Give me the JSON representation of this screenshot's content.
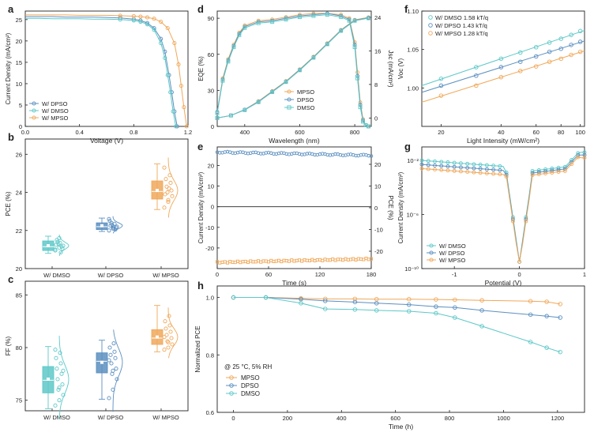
{
  "colors": {
    "DMSO": "#5ec8c8",
    "DPSO": "#5b8fc0",
    "MPSO": "#f0a85a",
    "axis": "#222222"
  },
  "chart_data": [
    {
      "panel": "a",
      "type": "line",
      "xlabel": "Voltage (V)",
      "ylabel": "Current Density (mA/cm²)",
      "xlim": [
        0,
        1.2
      ],
      "ylim": [
        0,
        27
      ],
      "xticks": [
        "0.0",
        "0.4",
        "0.8",
        "1.2"
      ],
      "yticks": [
        "0",
        "5",
        "10",
        "15",
        "20",
        "25"
      ],
      "legend": [
        "W/ DPSO",
        "W/ DMSO",
        "W/ MPSO"
      ],
      "series": [
        {
          "name": "DPSO",
          "x": [
            0,
            0.1,
            0.2,
            0.3,
            0.4,
            0.5,
            0.6,
            0.7,
            0.8,
            0.85,
            0.9,
            0.95,
            1.0,
            1.03,
            1.06,
            1.08,
            1.1,
            1.12
          ],
          "y": [
            25.7,
            25.7,
            25.7,
            25.6,
            25.6,
            25.6,
            25.5,
            25.4,
            25.1,
            24.8,
            24.2,
            23.0,
            20.5,
            17.5,
            12.0,
            8.0,
            3.5,
            0
          ]
        },
        {
          "name": "DMSO",
          "x": [
            0,
            0.1,
            0.2,
            0.3,
            0.4,
            0.5,
            0.6,
            0.7,
            0.8,
            0.85,
            0.9,
            0.95,
            1.0,
            1.03,
            1.05,
            1.07,
            1.09,
            1.11
          ],
          "y": [
            25.3,
            25.3,
            25.2,
            25.2,
            25.2,
            25.1,
            25.1,
            25.0,
            24.8,
            24.5,
            23.9,
            22.6,
            19.5,
            16.0,
            12.0,
            8.0,
            3.5,
            0
          ]
        },
        {
          "name": "MPSO",
          "x": [
            0,
            0.1,
            0.2,
            0.3,
            0.4,
            0.5,
            0.6,
            0.7,
            0.8,
            0.85,
            0.9,
            0.95,
            1.0,
            1.05,
            1.1,
            1.13,
            1.15,
            1.17,
            1.19
          ],
          "y": [
            26.1,
            26.1,
            26.1,
            26.1,
            26.0,
            26.0,
            26.0,
            25.9,
            25.8,
            25.7,
            25.5,
            25.2,
            24.5,
            23.0,
            19.5,
            14.5,
            9.5,
            4.5,
            0
          ]
        }
      ]
    },
    {
      "panel": "b",
      "type": "box",
      "ylabel": "PCE (%)",
      "ylim": [
        20,
        26.8
      ],
      "yticks": [
        "20",
        "22",
        "24",
        "26"
      ],
      "categories": [
        "W/ DMSO",
        "W/ DPSO",
        "W/ MPSO"
      ],
      "boxes": [
        {
          "min": 20.8,
          "q1": 20.95,
          "median": 21.15,
          "mean": 21.2,
          "q3": 21.45,
          "max": 21.7
        },
        {
          "min": 21.95,
          "q1": 22.05,
          "median": 22.2,
          "mean": 22.25,
          "q3": 22.4,
          "max": 22.65
        },
        {
          "min": 23.1,
          "q1": 23.65,
          "median": 24.05,
          "mean": 24.1,
          "q3": 24.6,
          "max": 25.5
        }
      ],
      "points": [
        [
          20.95,
          21.1,
          21.2,
          21.3,
          21.05,
          21.4,
          21.15,
          21.5,
          20.85,
          21.25,
          21.35,
          21.0,
          21.6
        ],
        [
          22.0,
          22.1,
          22.2,
          22.3,
          22.15,
          22.4,
          22.05,
          22.25,
          22.35,
          22.5,
          22.1,
          22.6,
          22.2
        ],
        [
          23.2,
          23.5,
          23.8,
          24.0,
          24.1,
          24.3,
          24.5,
          24.7,
          24.9,
          23.9,
          24.2,
          25.3,
          23.6
        ]
      ]
    },
    {
      "panel": "c",
      "type": "box",
      "ylabel": "FF (%)",
      "ylim": [
        74,
        86.3
      ],
      "yticks": [
        "75",
        "80",
        "85"
      ],
      "categories": [
        "W/ DMSO",
        "W/ DPSO",
        "W/ MPSO"
      ],
      "boxes": [
        {
          "min": 74.2,
          "q1": 75.7,
          "median": 76.9,
          "mean": 77.0,
          "q3": 78.2,
          "max": 80.1
        },
        {
          "min": 75.1,
          "q1": 77.6,
          "median": 78.7,
          "mean": 78.6,
          "q3": 79.5,
          "max": 80.7
        },
        {
          "min": 79.6,
          "q1": 80.3,
          "median": 80.9,
          "mean": 81.0,
          "q3": 81.7,
          "max": 84.0
        }
      ],
      "points": [
        [
          74.5,
          75.0,
          75.5,
          76.0,
          76.5,
          77.0,
          77.5,
          78.0,
          78.5,
          79.0,
          79.5,
          79.8,
          76.2,
          77.8
        ],
        [
          75.2,
          76.0,
          77.0,
          77.5,
          78.0,
          78.5,
          79.0,
          79.3,
          79.6,
          80.0,
          80.4,
          78.8,
          77.8
        ],
        [
          79.8,
          80.0,
          80.3,
          80.6,
          80.9,
          81.2,
          81.5,
          81.8,
          82.1,
          82.5,
          83.0,
          81.0,
          80.5
        ]
      ]
    },
    {
      "panel": "d",
      "type": "line",
      "xlabel": "Wavelength (nm)",
      "ylabel": "EQE (%)",
      "y2label": "Jsc (mA/cm²)",
      "xlim": [
        300,
        860
      ],
      "ylim": [
        0,
        96
      ],
      "y2lim": [
        -2,
        25.5
      ],
      "xticks": [
        "400",
        "600",
        "800"
      ],
      "yticks": [
        "0",
        "30",
        "60",
        "90"
      ],
      "y2ticks": [
        "0",
        "8",
        "16",
        "24"
      ],
      "legend": [
        "MPSO",
        "DPSO",
        "DMSO"
      ],
      "eqe": [
        {
          "name": "MPSO",
          "x": [
            300,
            320,
            340,
            360,
            380,
            400,
            450,
            500,
            550,
            600,
            650,
            700,
            750,
            780,
            800,
            810,
            820,
            830,
            840,
            850
          ],
          "y": [
            12,
            40,
            56,
            68,
            78,
            84,
            88,
            89,
            91,
            93,
            94,
            94,
            93,
            90,
            70,
            45,
            20,
            6,
            1,
            0
          ]
        },
        {
          "name": "DPSO",
          "x": [
            300,
            320,
            340,
            360,
            380,
            400,
            450,
            500,
            550,
            600,
            650,
            700,
            750,
            780,
            800,
            810,
            820,
            830,
            840,
            850
          ],
          "y": [
            12,
            39,
            55,
            67,
            77,
            83,
            87,
            88,
            90,
            92,
            93,
            94,
            92,
            89,
            68,
            42,
            18,
            5,
            1,
            0
          ]
        },
        {
          "name": "DMSO",
          "x": [
            300,
            320,
            340,
            360,
            380,
            400,
            450,
            500,
            550,
            600,
            650,
            700,
            750,
            780,
            800,
            810,
            820,
            830,
            840,
            850
          ],
          "y": [
            11,
            38,
            54,
            66,
            76,
            82,
            86,
            87,
            89,
            91,
            92,
            93,
            91,
            88,
            66,
            40,
            16,
            4,
            1,
            0
          ]
        }
      ],
      "jsc": [
        {
          "name": "MPSO",
          "x": [
            300,
            350,
            400,
            450,
            500,
            550,
            600,
            650,
            700,
            750,
            800,
            850
          ],
          "y": [
            0,
            0.6,
            2.0,
            4.0,
            6.4,
            8.8,
            11.6,
            14.6,
            17.8,
            21.0,
            23.4,
            24.0
          ]
        },
        {
          "name": "DPSO",
          "x": [
            300,
            350,
            400,
            450,
            500,
            550,
            600,
            650,
            700,
            750,
            800,
            850
          ],
          "y": [
            0,
            0.6,
            2.0,
            3.9,
            6.3,
            8.7,
            11.5,
            14.5,
            17.7,
            20.9,
            23.3,
            23.9
          ]
        },
        {
          "name": "DMSO",
          "x": [
            300,
            350,
            400,
            450,
            500,
            550,
            600,
            650,
            700,
            750,
            800,
            850
          ],
          "y": [
            0,
            0.6,
            1.9,
            3.8,
            6.2,
            8.6,
            11.4,
            14.4,
            17.6,
            20.8,
            23.2,
            23.8
          ]
        }
      ]
    },
    {
      "panel": "e",
      "type": "scatter",
      "xlabel": "Time (s)",
      "ylabel": "Current Density (mA/cm²)",
      "y2label": "PCE (%)",
      "xlim": [
        0,
        180
      ],
      "ylim": [
        -30,
        29
      ],
      "y2lim": [
        -28,
        28
      ],
      "xticks": [
        "0",
        "60",
        "120",
        "180"
      ],
      "yticks": [
        "-20",
        "-10",
        "0",
        "10",
        "20"
      ],
      "y2ticks": [
        "-20",
        "-10",
        "0",
        "10",
        "20"
      ],
      "series": [
        {
          "name": "PCE",
          "y_start": 25.6,
          "y_end": 24.1
        },
        {
          "name": "Current Density",
          "y_start": -27.0,
          "y_end": -25.3
        }
      ]
    },
    {
      "panel": "f",
      "type": "scatter",
      "xlabel": "Light Intensity (mW/cm²)",
      "ylabel": "Voc (V)",
      "xscale": "log",
      "xlim": [
        16,
        105
      ],
      "ylim": [
        0.95,
        1.1
      ],
      "xticks": [
        "20",
        "40",
        "60",
        "80",
        "100"
      ],
      "yticks": [
        "1.00",
        "1.05",
        "1.10"
      ],
      "legend": [
        "W/ DMSO  1.58 kT/q",
        "W/ DPSO  1.43 kT/q",
        "W/ MPSO  1.28 kT/q"
      ],
      "x": [
        20,
        30,
        40,
        50,
        60,
        70,
        80,
        90,
        100
      ],
      "series": [
        {
          "name": "DMSO",
          "y": [
            1.012,
            1.027,
            1.038,
            1.046,
            1.053,
            1.059,
            1.064,
            1.069,
            1.074
          ]
        },
        {
          "name": "DPSO",
          "y": [
            1.003,
            1.016,
            1.027,
            1.034,
            1.041,
            1.047,
            1.051,
            1.056,
            1.06
          ]
        },
        {
          "name": "MPSO",
          "y": [
            0.99,
            1.003,
            1.014,
            1.022,
            1.028,
            1.034,
            1.038,
            1.043,
            1.047
          ]
        }
      ]
    },
    {
      "panel": "g",
      "type": "line",
      "xlabel": "Potential (V)",
      "ylabel": "Current Density (mA/cm²)",
      "yscale": "log",
      "xlim": [
        -1.5,
        1.0
      ],
      "ylim_exp": [
        -10,
        -1
      ],
      "xticks": [
        "-1",
        "0",
        "1"
      ],
      "yticks": [
        "10⁻¹⁰",
        "10⁻⁶",
        "10⁻²"
      ],
      "legend": [
        "W/ DMSO",
        "W/ DPSO",
        "W/ MPSO"
      ],
      "series": [
        {
          "name": "DMSO",
          "logy_at_min": -2.0,
          "logy_at_max": -1.4
        },
        {
          "name": "DPSO",
          "logy_at_min": -2.3,
          "logy_at_max": -1.6
        },
        {
          "name": "MPSO",
          "logy_at_min": -2.6,
          "logy_at_max": -1.8
        }
      ]
    },
    {
      "panel": "h",
      "type": "line",
      "xlabel": "Time (h)",
      "ylabel": "Normalized PCE",
      "xlim": [
        -60,
        1300
      ],
      "ylim": [
        0.6,
        1.04
      ],
      "xticks": [
        "0",
        "200",
        "400",
        "600",
        "800",
        "1000",
        "1200"
      ],
      "yticks": [
        "0.6",
        "0.8",
        "1.0"
      ],
      "annotation": "@ 25 °C,  5% RH",
      "legend": [
        "MPSO",
        "DPSO",
        "DMSO"
      ],
      "series": [
        {
          "name": "MPSO",
          "x": [
            0,
            120,
            250,
            340,
            450,
            530,
            650,
            750,
            820,
            920,
            1100,
            1160,
            1210
          ],
          "y": [
            1.0,
            1.0,
            0.997,
            0.995,
            0.995,
            0.994,
            0.994,
            0.993,
            0.992,
            0.99,
            0.987,
            0.985,
            0.977
          ]
        },
        {
          "name": "DPSO",
          "x": [
            0,
            120,
            250,
            340,
            450,
            530,
            650,
            750,
            820,
            920,
            1100,
            1160,
            1210
          ],
          "y": [
            1.0,
            1.0,
            0.994,
            0.988,
            0.984,
            0.98,
            0.975,
            0.968,
            0.965,
            0.955,
            0.94,
            0.935,
            0.93
          ]
        },
        {
          "name": "DMSO",
          "x": [
            0,
            120,
            250,
            340,
            450,
            530,
            650,
            750,
            820,
            920,
            1100,
            1160,
            1210
          ],
          "y": [
            1.0,
            1.0,
            0.98,
            0.96,
            0.958,
            0.955,
            0.952,
            0.945,
            0.93,
            0.9,
            0.845,
            0.825,
            0.81
          ]
        }
      ]
    }
  ]
}
